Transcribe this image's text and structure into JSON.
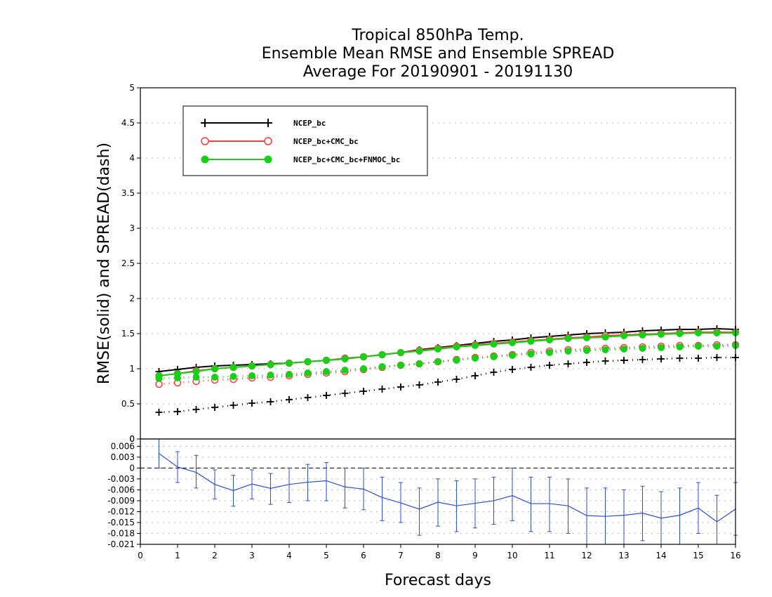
{
  "chart_data": [
    {
      "type": "line",
      "title": [
        "Tropical 850hPa Temp.",
        "Ensemble Mean RMSE and Ensemble SPREAD",
        "Average For 20190901 - 20191130"
      ],
      "ylabel": "RMSE(solid) and SPREAD(dash)",
      "xlabel": "Forecast days",
      "xlim": [
        0,
        16
      ],
      "ylim": [
        0,
        5
      ],
      "yticks": [
        "0",
        "0.5",
        "1",
        "1.5",
        "2",
        "2.5",
        "3",
        "3.5",
        "4",
        "4.5",
        "5"
      ],
      "xticks": [
        "0",
        "1",
        "2",
        "3",
        "4",
        "5",
        "6",
        "7",
        "8",
        "9",
        "10",
        "11",
        "12",
        "13",
        "14",
        "15",
        "16"
      ],
      "grid": true,
      "legend_position": "top-left",
      "x": [
        0.5,
        1,
        1.5,
        2,
        2.5,
        3,
        3.5,
        4,
        4.5,
        5,
        5.5,
        6,
        6.5,
        7,
        7.5,
        8,
        8.5,
        9,
        9.5,
        10,
        10.5,
        11,
        11.5,
        12,
        12.5,
        13,
        13.5,
        14,
        14.5,
        15,
        15.5,
        16
      ],
      "series": [
        {
          "name": "NCEP_bc",
          "color": "#000000",
          "marker": "plus",
          "rmse": [
            0.96,
            0.99,
            1.02,
            1.04,
            1.05,
            1.06,
            1.07,
            1.08,
            1.1,
            1.12,
            1.14,
            1.17,
            1.2,
            1.23,
            1.27,
            1.3,
            1.33,
            1.36,
            1.39,
            1.41,
            1.44,
            1.46,
            1.48,
            1.5,
            1.51,
            1.52,
            1.54,
            1.55,
            1.56,
            1.56,
            1.57,
            1.56
          ],
          "spread": [
            0.38,
            0.39,
            0.42,
            0.45,
            0.48,
            0.51,
            0.53,
            0.56,
            0.59,
            0.62,
            0.65,
            0.68,
            0.71,
            0.74,
            0.77,
            0.81,
            0.85,
            0.9,
            0.95,
            0.99,
            1.02,
            1.05,
            1.07,
            1.09,
            1.11,
            1.12,
            1.13,
            1.14,
            1.15,
            1.15,
            1.16,
            1.16
          ]
        },
        {
          "name": "NCEP_bc+CMC_bc",
          "color": "#ff3b3b",
          "marker": "open-circle",
          "rmse": [
            0.9,
            0.93,
            0.97,
            1.0,
            1.02,
            1.04,
            1.06,
            1.08,
            1.1,
            1.12,
            1.15,
            1.17,
            1.2,
            1.23,
            1.26,
            1.29,
            1.32,
            1.34,
            1.36,
            1.38,
            1.4,
            1.42,
            1.44,
            1.45,
            1.47,
            1.48,
            1.49,
            1.5,
            1.51,
            1.52,
            1.52,
            1.52
          ],
          "spread": [
            0.78,
            0.8,
            0.82,
            0.84,
            0.85,
            0.87,
            0.88,
            0.9,
            0.92,
            0.94,
            0.96,
            0.99,
            1.02,
            1.05,
            1.07,
            1.1,
            1.13,
            1.16,
            1.18,
            1.2,
            1.23,
            1.25,
            1.27,
            1.28,
            1.29,
            1.3,
            1.31,
            1.32,
            1.33,
            1.33,
            1.34,
            1.34
          ]
        },
        {
          "name": "NCEP_bc+CMC_bc+FNMOC_bc",
          "color": "#18d018",
          "marker": "filled-circle",
          "rmse": [
            0.9,
            0.93,
            0.96,
            1.0,
            1.02,
            1.04,
            1.06,
            1.08,
            1.1,
            1.12,
            1.14,
            1.17,
            1.2,
            1.23,
            1.25,
            1.28,
            1.31,
            1.33,
            1.35,
            1.37,
            1.39,
            1.41,
            1.43,
            1.44,
            1.45,
            1.47,
            1.48,
            1.49,
            1.5,
            1.51,
            1.51,
            1.51
          ],
          "spread": [
            0.86,
            0.87,
            0.88,
            0.88,
            0.89,
            0.9,
            0.91,
            0.92,
            0.94,
            0.96,
            0.98,
            1.0,
            1.03,
            1.05,
            1.07,
            1.1,
            1.12,
            1.15,
            1.17,
            1.19,
            1.21,
            1.23,
            1.25,
            1.26,
            1.27,
            1.28,
            1.29,
            1.3,
            1.31,
            1.32,
            1.32,
            1.33
          ]
        }
      ]
    },
    {
      "type": "line",
      "xlim": [
        0,
        16
      ],
      "ylim": [
        -0.021,
        0.008
      ],
      "yticks": [
        "0.006",
        "0.003",
        "0",
        "-0.003",
        "-0.006",
        "-0.009",
        "-0.012",
        "-0.015",
        "-0.018",
        "-0.021"
      ],
      "grid": true,
      "color": "#2b4fd8",
      "x": [
        0.5,
        1,
        1.5,
        2,
        2.5,
        3,
        3.5,
        4,
        4.5,
        5,
        5.5,
        6,
        6.5,
        7,
        7.5,
        8,
        8.5,
        9,
        9.5,
        10,
        10.5,
        11,
        11.5,
        12,
        12.5,
        13,
        13.5,
        14,
        14.5,
        15,
        15.5,
        16
      ],
      "values": [
        0.004,
        0.0003,
        -0.0012,
        -0.0045,
        -0.0062,
        -0.0044,
        -0.0056,
        -0.0045,
        -0.0039,
        -0.0035,
        -0.0052,
        -0.0058,
        -0.0081,
        -0.0096,
        -0.0113,
        -0.0094,
        -0.0104,
        -0.0097,
        -0.009,
        -0.0076,
        -0.0098,
        -0.0098,
        -0.0104,
        -0.0131,
        -0.0133,
        -0.013,
        -0.0124,
        -0.0138,
        -0.013,
        -0.011,
        -0.0148,
        -0.0113
      ],
      "err_low": [
        0.0,
        -0.004,
        -0.0055,
        -0.0085,
        -0.0105,
        -0.0085,
        -0.01,
        -0.0095,
        -0.009,
        -0.009,
        -0.011,
        -0.0115,
        -0.0145,
        -0.015,
        -0.0185,
        -0.016,
        -0.0175,
        -0.0165,
        -0.0155,
        -0.0145,
        -0.0175,
        -0.0175,
        -0.018,
        -0.021,
        -0.021,
        -0.021,
        -0.02,
        -0.021,
        -0.021,
        -0.018,
        -0.021,
        -0.0185
      ],
      "err_high": [
        0.008,
        0.0045,
        0.0035,
        -0.0005,
        -0.002,
        -0.0005,
        -0.0015,
        0.0,
        0.001,
        0.0015,
        0.0,
        0.0,
        -0.0025,
        -0.004,
        -0.0055,
        -0.003,
        -0.0035,
        -0.003,
        -0.0025,
        -0.0,
        -0.0025,
        -0.0025,
        -0.003,
        -0.0055,
        -0.0055,
        -0.006,
        -0.005,
        -0.0065,
        -0.0055,
        -0.004,
        -0.0075,
        -0.004
      ]
    }
  ]
}
